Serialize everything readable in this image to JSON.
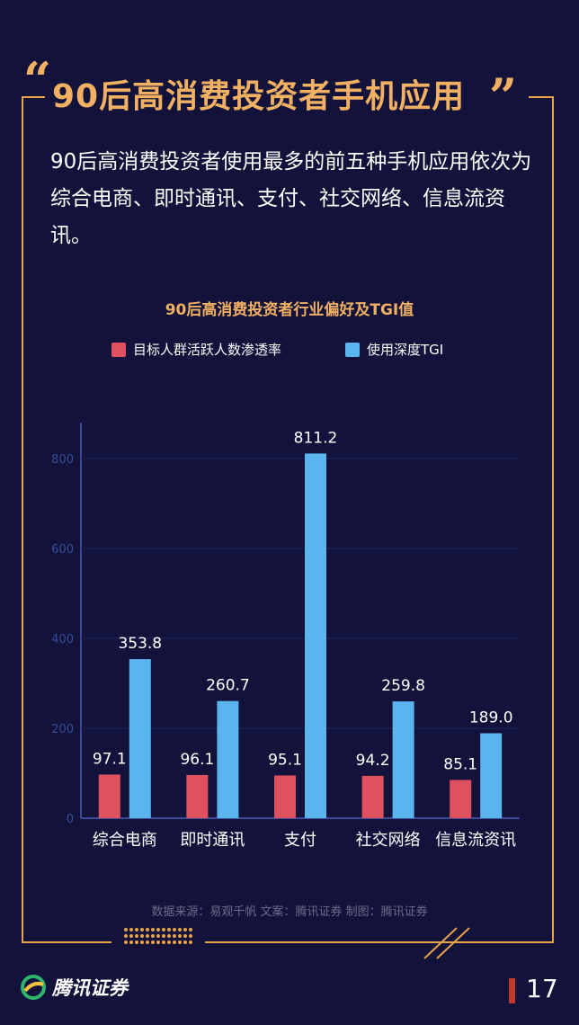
{
  "header": {
    "title": "90后高消费投资者手机应用",
    "open_quote": "“",
    "close_quote": "”"
  },
  "intro": "90后高消费投资者使用最多的前五种手机应用依次为综合电商、即时通讯、支付、社交网络、信息流资讯。",
  "colors": {
    "background": "#12123a",
    "accent": "#f2b062",
    "penetration": "#e05160",
    "tgi": "#5ab4ee"
  },
  "chart_data": {
    "type": "bar",
    "title": "90后高消费投资者行业偏好及TGI值",
    "categories": [
      "综合电商",
      "即时通讯",
      "支付",
      "社交网络",
      "信息流资讯"
    ],
    "series": [
      {
        "name": "目标人群活跃人数渗透率",
        "values": [
          97.1,
          96.1,
          95.1,
          94.2,
          85.1
        ]
      },
      {
        "name": "使用深度TGI",
        "values": [
          353.8,
          260.7,
          811.2,
          259.8,
          189.0
        ]
      }
    ],
    "data_labels": [
      [
        "97.1",
        "96.1",
        "95.1",
        "94.2",
        "85.1"
      ],
      [
        "353.8",
        "260.7",
        "811.2",
        "259.8",
        "189.0"
      ]
    ],
    "ylim": [
      0,
      880
    ],
    "yticks": [
      "0",
      "200",
      "400",
      "600",
      "800"
    ],
    "xlabel": "",
    "ylabel": "",
    "legend": "top",
    "grid": true
  },
  "footer": {
    "source": "数据来源：易观千帆 文案：腾讯证券 制图：腾讯证券",
    "logo_text": "腾讯证券",
    "page_number": "17"
  }
}
